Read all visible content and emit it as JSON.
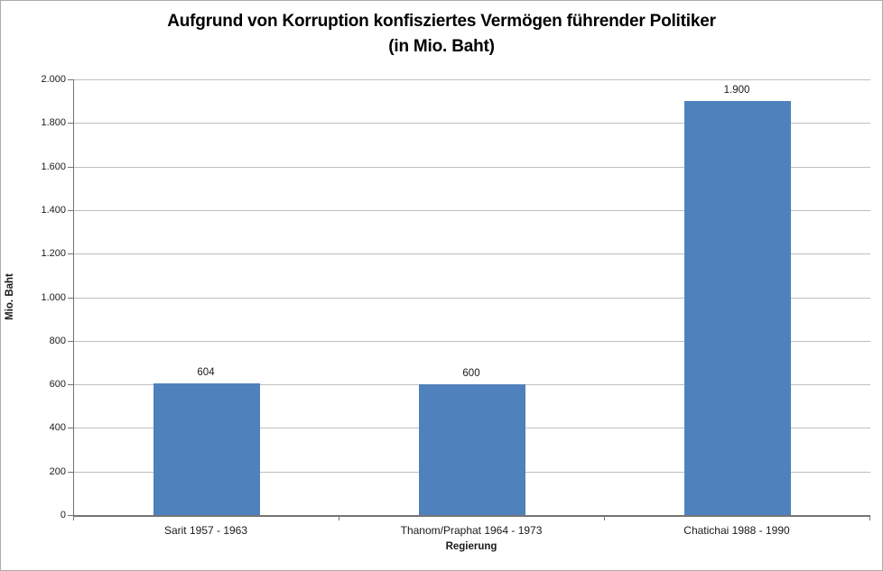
{
  "chart_data": {
    "type": "bar",
    "title": "Aufgrund von Korruption konfisziertes Vermögen führender Politiker",
    "subtitle": "(in Mio. Baht)",
    "categories": [
      "Sarit 1957 - 1963",
      "Thanom/Praphat 1964 - 1973",
      "Chatichai 1988 - 1990"
    ],
    "values": [
      604,
      600,
      1900
    ],
    "value_labels": [
      "604",
      "600",
      "1.900"
    ],
    "xlabel": "Regierung",
    "ylabel": "Mio. Baht",
    "ylim": [
      0,
      2000
    ],
    "ytick_step": 200,
    "ytick_labels": [
      "0",
      "200",
      "400",
      "600",
      "800",
      "1.000",
      "1.200",
      "1.400",
      "1.600",
      "1.800",
      "2.000"
    ],
    "grid": true,
    "legend_position": "none",
    "bar_color": "#4F81BD",
    "gridline_color": "#BFBFBF",
    "axis_color": "#747474",
    "text_color": "#1A1A1A"
  }
}
